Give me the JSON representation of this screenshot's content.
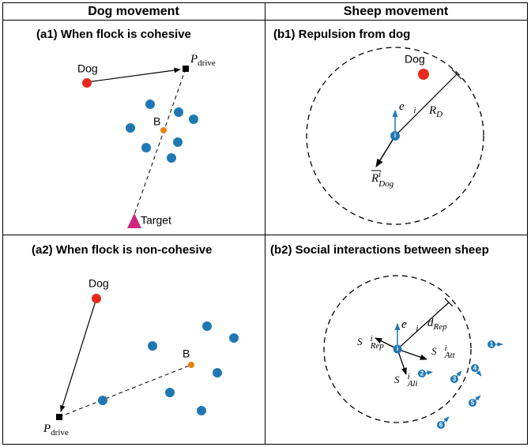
{
  "headers": [
    "Dog movement",
    "Sheep movement"
  ],
  "a1": {
    "title": "(a1) When flock is cohesive",
    "dog": "Dog",
    "p": "P",
    "p_sub": "drive",
    "b": "B",
    "target": "Target"
  },
  "b1": {
    "title": "(b1) Repulsion from dog",
    "dog": "Dog",
    "e": "e⃗",
    "e_sub": "i",
    "r": "R",
    "r_sub": "D",
    "rdog": "R",
    "rdog_sup": "i",
    "rdog_sub": "Dog",
    "i": "i"
  },
  "a2": {
    "title": "(a2) When flock is non-cohesive",
    "dog": "Dog",
    "p": "P",
    "p_sub": "drive",
    "b": "B"
  },
  "b2": {
    "title": "(b2) Social interactions between sheep",
    "e": "e⃗",
    "e_sub": "i",
    "d": "d",
    "d_sub": "Rep",
    "s": "S⃗",
    "sup": "i",
    "rep": "Rep",
    "att": "Att",
    "ali": "Ali",
    "i": "i",
    "ids": [
      "1",
      "2",
      "3",
      "4",
      "5",
      "6"
    ]
  }
}
